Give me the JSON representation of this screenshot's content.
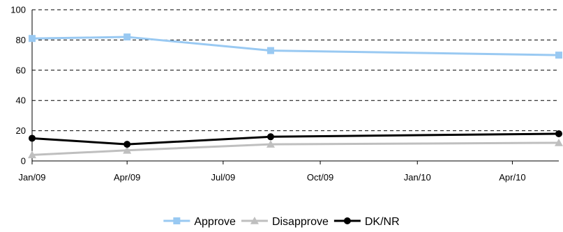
{
  "chart_data": {
    "type": "line",
    "title": "",
    "xlabel": "",
    "ylabel": "",
    "ylim": [
      0,
      100
    ],
    "yticks": [
      0,
      20,
      40,
      60,
      80,
      100
    ],
    "xlim": [
      "2009-01-01",
      "2010-05-15"
    ],
    "xticks": [
      {
        "date": "2009-01-01",
        "label": "Jan/09"
      },
      {
        "date": "2009-04-01",
        "label": "Apr/09"
      },
      {
        "date": "2009-07-01",
        "label": "Jul/09"
      },
      {
        "date": "2009-10-01",
        "label": "Oct/09"
      },
      {
        "date": "2010-01-01",
        "label": "Jan/10"
      },
      {
        "date": "2010-04-01",
        "label": "Apr/10"
      }
    ],
    "grid": "horizontal dashed",
    "legend": "bottom",
    "series": [
      {
        "name": "Approve",
        "color": "#99c9f2",
        "marker": "square",
        "x": [
          "2009-01-01",
          "2009-04-01",
          "2009-08-15",
          "2010-05-15"
        ],
        "values": [
          81,
          82,
          73,
          70
        ]
      },
      {
        "name": "Disapprove",
        "color": "#bfbfbf",
        "marker": "triangle",
        "x": [
          "2009-01-01",
          "2009-04-01",
          "2009-08-15",
          "2010-05-15"
        ],
        "values": [
          4,
          7,
          11,
          12
        ]
      },
      {
        "name": "DK/NR",
        "color": "#000000",
        "marker": "circle",
        "x": [
          "2009-01-01",
          "2009-04-01",
          "2009-08-15",
          "2010-05-15"
        ],
        "values": [
          15,
          11,
          16,
          18
        ]
      }
    ]
  }
}
